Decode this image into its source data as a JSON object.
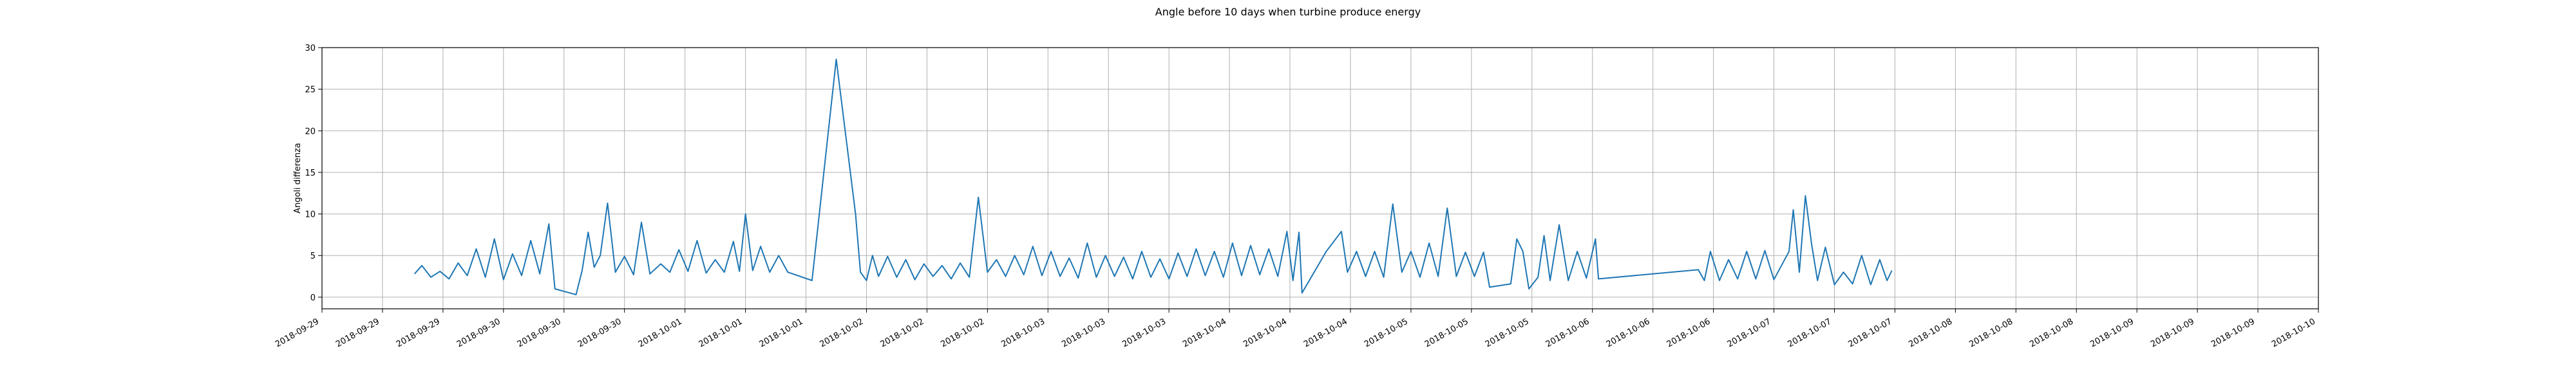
{
  "chart_data": {
    "type": "line",
    "title": "Angle before 10 days when turbine produce energy",
    "xlabel": "",
    "ylabel": "Angoli differenza",
    "ylim": [
      -1.4,
      30
    ],
    "yticks": [
      0,
      5,
      10,
      15,
      20,
      25,
      30
    ],
    "xticks": [
      "2018-09-29",
      "2018-09-29",
      "2018-09-29",
      "2018-09-30",
      "2018-09-30",
      "2018-09-30",
      "2018-10-01",
      "2018-10-01",
      "2018-10-01",
      "2018-10-02",
      "2018-10-02",
      "2018-10-02",
      "2018-10-03",
      "2018-10-03",
      "2018-10-03",
      "2018-10-04",
      "2018-10-04",
      "2018-10-04",
      "2018-10-05",
      "2018-10-05",
      "2018-10-05",
      "2018-10-06",
      "2018-10-06",
      "2018-10-06",
      "2018-10-07",
      "2018-10-07",
      "2018-10-07",
      "2018-10-08",
      "2018-10-08",
      "2018-10-08",
      "2018-10-09",
      "2018-10-09",
      "2018-10-09",
      "2018-10-10"
    ],
    "grid": true,
    "color": "#1f77b4",
    "series": [
      {
        "values": [
          [
            1.53,
            2.8
          ],
          [
            1.65,
            3.8
          ],
          [
            1.8,
            2.4
          ],
          [
            1.95,
            3.1
          ],
          [
            2.1,
            2.2
          ],
          [
            2.25,
            4.1
          ],
          [
            2.4,
            2.6
          ],
          [
            2.55,
            5.8
          ],
          [
            2.7,
            2.4
          ],
          [
            2.85,
            7.0
          ],
          [
            3.0,
            2.1
          ],
          [
            3.15,
            5.2
          ],
          [
            3.3,
            2.6
          ],
          [
            3.45,
            6.8
          ],
          [
            3.6,
            2.8
          ],
          [
            3.75,
            8.8
          ],
          [
            3.85,
            1.0
          ],
          [
            4.2,
            0.3
          ],
          [
            4.3,
            3.2
          ],
          [
            4.4,
            7.8
          ],
          [
            4.5,
            3.6
          ],
          [
            4.6,
            5.0
          ],
          [
            4.72,
            11.3
          ],
          [
            4.85,
            3.0
          ],
          [
            5.0,
            4.9
          ],
          [
            5.15,
            2.7
          ],
          [
            5.28,
            9.0
          ],
          [
            5.42,
            2.8
          ],
          [
            5.6,
            4.0
          ],
          [
            5.75,
            3.0
          ],
          [
            5.9,
            5.7
          ],
          [
            6.05,
            3.1
          ],
          [
            6.2,
            6.8
          ],
          [
            6.35,
            2.9
          ],
          [
            6.5,
            4.5
          ],
          [
            6.65,
            3.0
          ],
          [
            6.8,
            6.7
          ],
          [
            6.9,
            3.1
          ],
          [
            7.0,
            10.0
          ],
          [
            7.12,
            3.2
          ],
          [
            7.25,
            6.1
          ],
          [
            7.4,
            3.0
          ],
          [
            7.55,
            5.0
          ],
          [
            7.7,
            3.0
          ],
          [
            8.1,
            2.0
          ],
          [
            8.5,
            28.6
          ],
          [
            8.82,
            10.0
          ],
          [
            8.9,
            3.0
          ],
          [
            9.0,
            2.0
          ],
          [
            9.1,
            5.0
          ],
          [
            9.2,
            2.5
          ],
          [
            9.35,
            4.9
          ],
          [
            9.5,
            2.4
          ],
          [
            9.65,
            4.5
          ],
          [
            9.8,
            2.1
          ],
          [
            9.95,
            4.0
          ],
          [
            10.1,
            2.5
          ],
          [
            10.25,
            3.8
          ],
          [
            10.4,
            2.2
          ],
          [
            10.55,
            4.1
          ],
          [
            10.7,
            2.4
          ],
          [
            10.85,
            12.0
          ],
          [
            11.0,
            3.0
          ],
          [
            11.15,
            4.5
          ],
          [
            11.3,
            2.5
          ],
          [
            11.45,
            5.0
          ],
          [
            11.6,
            2.7
          ],
          [
            11.75,
            6.1
          ],
          [
            11.9,
            2.6
          ],
          [
            12.05,
            5.5
          ],
          [
            12.2,
            2.5
          ],
          [
            12.35,
            4.7
          ],
          [
            12.5,
            2.3
          ],
          [
            12.65,
            6.5
          ],
          [
            12.8,
            2.4
          ],
          [
            12.95,
            5.0
          ],
          [
            13.1,
            2.5
          ],
          [
            13.25,
            4.8
          ],
          [
            13.4,
            2.2
          ],
          [
            13.55,
            5.5
          ],
          [
            13.7,
            2.4
          ],
          [
            13.85,
            4.6
          ],
          [
            14.0,
            2.2
          ],
          [
            14.15,
            5.3
          ],
          [
            14.3,
            2.5
          ],
          [
            14.45,
            5.8
          ],
          [
            14.6,
            2.6
          ],
          [
            14.75,
            5.5
          ],
          [
            14.9,
            2.4
          ],
          [
            15.05,
            6.5
          ],
          [
            15.2,
            2.6
          ],
          [
            15.35,
            6.2
          ],
          [
            15.5,
            2.7
          ],
          [
            15.65,
            5.8
          ],
          [
            15.8,
            2.5
          ],
          [
            15.95,
            7.9
          ],
          [
            16.05,
            2.0
          ],
          [
            16.15,
            7.8
          ],
          [
            16.2,
            0.5
          ],
          [
            16.6,
            5.5
          ],
          [
            16.85,
            7.9
          ],
          [
            16.95,
            3.0
          ],
          [
            17.1,
            5.5
          ],
          [
            17.25,
            2.5
          ],
          [
            17.4,
            5.5
          ],
          [
            17.55,
            2.4
          ],
          [
            17.7,
            11.2
          ],
          [
            17.85,
            3.0
          ],
          [
            18.0,
            5.5
          ],
          [
            18.15,
            2.4
          ],
          [
            18.3,
            6.5
          ],
          [
            18.45,
            2.5
          ],
          [
            18.6,
            10.7
          ],
          [
            18.75,
            2.5
          ],
          [
            18.9,
            5.4
          ],
          [
            19.05,
            2.5
          ],
          [
            19.2,
            5.4
          ],
          [
            19.3,
            1.2
          ],
          [
            19.65,
            1.6
          ],
          [
            19.75,
            7.0
          ],
          [
            19.85,
            5.5
          ],
          [
            19.95,
            1.0
          ],
          [
            20.1,
            2.4
          ],
          [
            20.2,
            7.4
          ],
          [
            20.3,
            2.0
          ],
          [
            20.45,
            8.7
          ],
          [
            20.6,
            2.0
          ],
          [
            20.75,
            5.5
          ],
          [
            20.9,
            2.3
          ],
          [
            21.05,
            7.0
          ],
          [
            21.1,
            2.2
          ],
          [
            22.75,
            3.3
          ],
          [
            22.85,
            2.0
          ],
          [
            22.95,
            5.5
          ],
          [
            23.1,
            2.0
          ],
          [
            23.25,
            4.5
          ],
          [
            23.4,
            2.2
          ],
          [
            23.55,
            5.5
          ],
          [
            23.7,
            2.2
          ],
          [
            23.85,
            5.6
          ],
          [
            24.0,
            2.1
          ],
          [
            24.25,
            5.5
          ],
          [
            24.32,
            10.5
          ],
          [
            24.42,
            3.0
          ],
          [
            24.52,
            12.2
          ],
          [
            24.62,
            6.5
          ],
          [
            24.72,
            2.0
          ],
          [
            24.85,
            6.0
          ],
          [
            25.0,
            1.5
          ],
          [
            25.15,
            3.0
          ],
          [
            25.3,
            1.6
          ],
          [
            25.45,
            5.0
          ],
          [
            25.6,
            1.5
          ],
          [
            25.75,
            4.5
          ],
          [
            25.87,
            2.0
          ],
          [
            25.95,
            3.2
          ]
        ]
      }
    ]
  }
}
